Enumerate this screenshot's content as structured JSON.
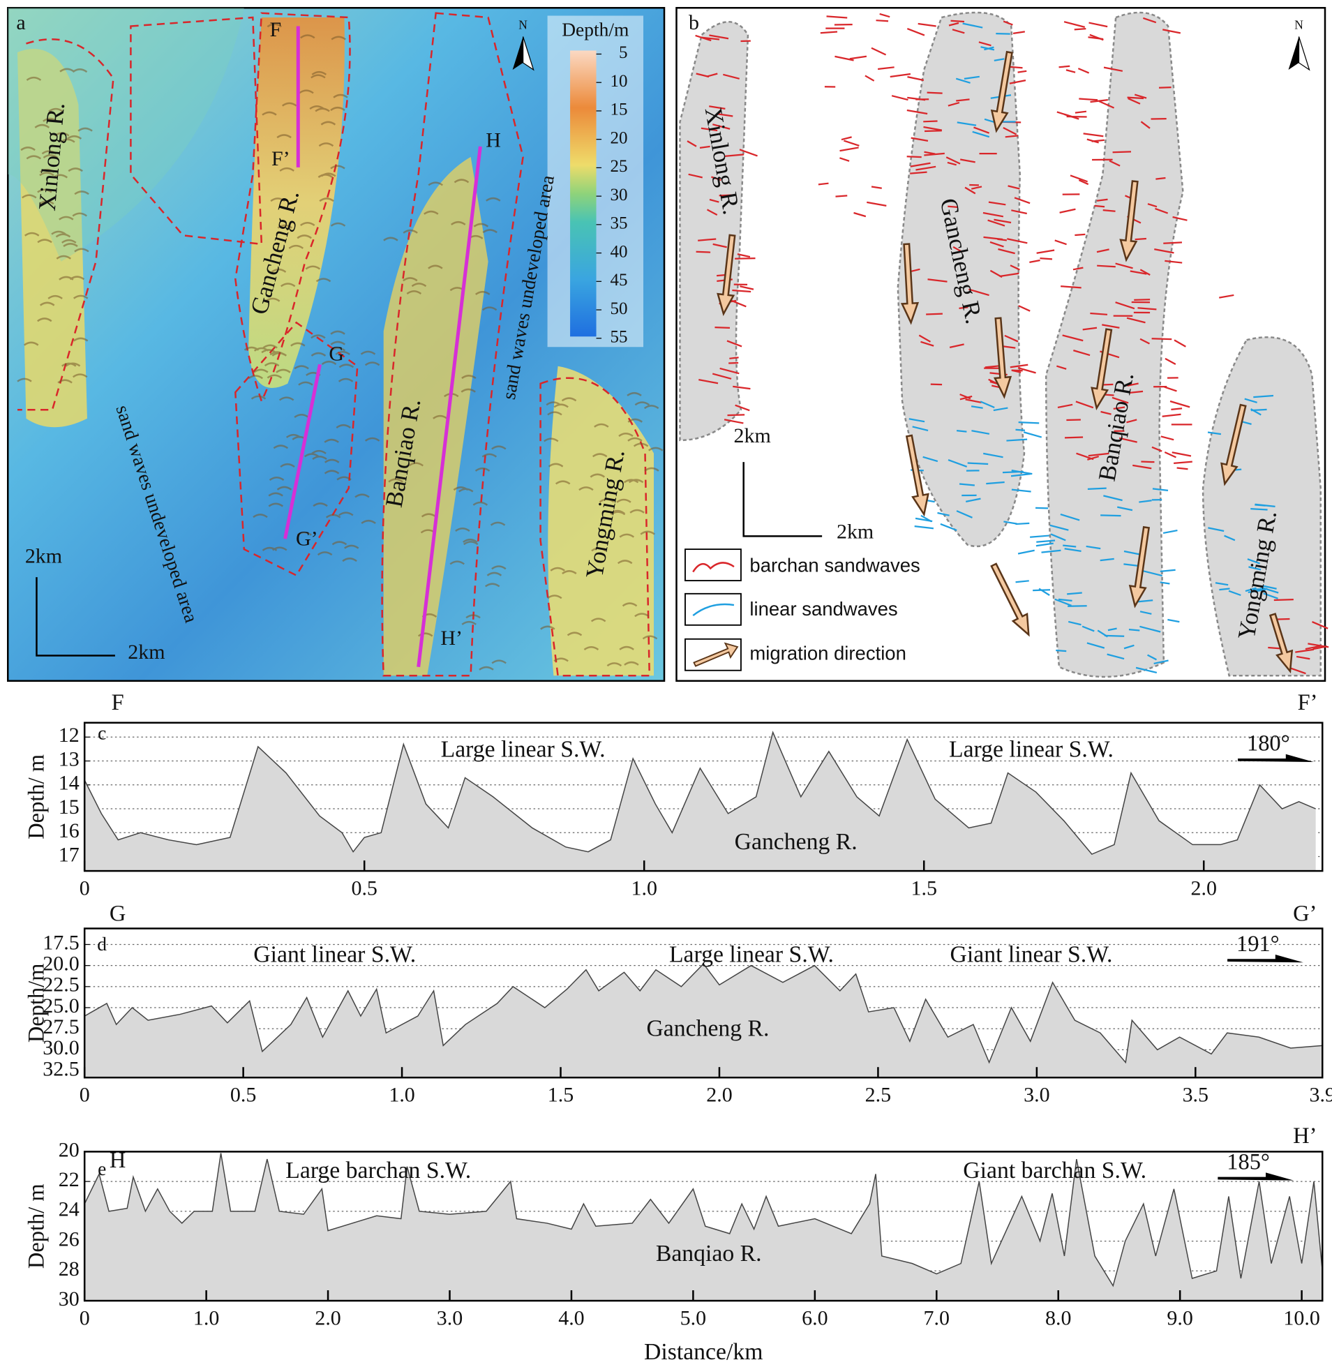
{
  "panel_a": {
    "label": "a",
    "ridges": [
      "Xinlong R.",
      "Gancheng R.",
      "Banqiao R.",
      "Yongming R."
    ],
    "undeveloped": [
      "sand waves undeveloped area",
      "sand waves undeveloped area"
    ],
    "profile_ends": [
      "F",
      "F’",
      "G",
      "G’",
      "H",
      "H’"
    ],
    "scale": [
      "2km",
      "2km"
    ],
    "north": "N",
    "colorbar": {
      "title": "Depth/m",
      "ticks": [
        5,
        10,
        15,
        20,
        25,
        30,
        35,
        40,
        45,
        50,
        55
      ]
    }
  },
  "panel_b": {
    "label": "b",
    "ridges": [
      "Xinlong R.",
      "Gancheng R.",
      "Banqiao R.",
      "Yongming R."
    ],
    "scale": [
      "2km",
      "2km"
    ],
    "north": "N",
    "legend": [
      "barchan sandwaves",
      "linear sandwaves",
      "migration direction"
    ]
  },
  "chart_data": [
    {
      "type": "area",
      "panel": "c",
      "start_label": "F",
      "end_label": "F’",
      "direction": "180°",
      "annotations": [
        "Large linear S.W.",
        "Large linear S.W.",
        "Gancheng R."
      ],
      "ylabel": "Depth/ m",
      "color": "#d9d9d9",
      "grid": true,
      "x": [
        0,
        0.03,
        0.06,
        0.1,
        0.15,
        0.2,
        0.26,
        0.31,
        0.36,
        0.42,
        0.46,
        0.48,
        0.5,
        0.53,
        0.57,
        0.61,
        0.65,
        0.68,
        0.73,
        0.8,
        0.86,
        0.9,
        0.94,
        0.98,
        1.02,
        1.05,
        1.1,
        1.15,
        1.2,
        1.23,
        1.28,
        1.33,
        1.38,
        1.42,
        1.47,
        1.52,
        1.58,
        1.62,
        1.65,
        1.7,
        1.75,
        1.8,
        1.84,
        1.87,
        1.92,
        1.98,
        2.03,
        2.06,
        2.1,
        2.14,
        2.17,
        2.2
      ],
      "values": [
        13.8,
        15.2,
        16.3,
        16.0,
        16.3,
        16.5,
        16.2,
        12.4,
        13.5,
        15.3,
        16.0,
        16.8,
        16.2,
        16.0,
        12.3,
        14.8,
        15.8,
        13.7,
        14.5,
        15.8,
        16.6,
        16.8,
        16.3,
        12.9,
        14.8,
        16.0,
        13.3,
        15.2,
        14.5,
        11.8,
        14.5,
        12.6,
        14.5,
        15.3,
        12.1,
        14.6,
        15.8,
        15.6,
        13.5,
        14.3,
        15.5,
        16.9,
        16.5,
        13.5,
        15.5,
        16.5,
        16.5,
        16.3,
        14.0,
        15.0,
        14.7,
        15.0
      ],
      "xlim": [
        0,
        2.212
      ],
      "xticks": [
        0,
        0.5,
        {
          "value": 1,
          "label": "1.0"
        },
        1.5,
        {
          "value": 2,
          "label": "2.0"
        }
      ],
      "ylim": [
        17.6,
        11.4
      ],
      "yticks": [
        12,
        13,
        14,
        15,
        16,
        17
      ]
    },
    {
      "type": "area",
      "panel": "d",
      "start_label": "G",
      "end_label": "G’",
      "direction": "191°",
      "annotations": [
        "Giant linear S.W.",
        "Large linear S.W.",
        "Giant linear S.W.",
        "Gancheng R."
      ],
      "ylabel": "Depth/m",
      "color": "#d9d9d9",
      "grid": true,
      "x": [
        0,
        0.07,
        0.1,
        0.15,
        0.2,
        0.3,
        0.4,
        0.45,
        0.52,
        0.56,
        0.65,
        0.7,
        0.75,
        0.83,
        0.87,
        0.92,
        0.95,
        1.05,
        1.1,
        1.13,
        1.2,
        1.3,
        1.35,
        1.45,
        1.52,
        1.58,
        1.62,
        1.7,
        1.75,
        1.8,
        1.88,
        1.95,
        2.0,
        2.1,
        2.2,
        2.3,
        2.38,
        2.43,
        2.47,
        2.55,
        2.6,
        2.65,
        2.72,
        2.8,
        2.85,
        2.92,
        2.98,
        3.05,
        3.12,
        3.2,
        3.28,
        3.3,
        3.38,
        3.45,
        3.55,
        3.6,
        3.7,
        3.8,
        3.9
      ],
      "values": [
        26,
        24.5,
        27,
        25,
        26.5,
        25.8,
        24.8,
        26.8,
        24.2,
        30.2,
        27,
        23.8,
        28.5,
        23,
        26,
        22.8,
        28,
        26,
        23,
        29.5,
        27,
        24.5,
        22.5,
        25,
        22.8,
        20.5,
        23,
        20.8,
        23,
        20.5,
        22.5,
        19.8,
        22.3,
        20,
        22,
        20,
        23,
        21,
        25.5,
        25,
        29,
        24,
        28.5,
        27,
        31.5,
        25,
        29,
        22,
        26.5,
        28,
        31.5,
        26.5,
        30,
        28.5,
        30.5,
        28,
        28.5,
        29.8,
        29.5
      ],
      "xlim": [
        0,
        3.9
      ],
      "xticks": [
        0,
        0.5,
        {
          "value": 1,
          "label": "1.0"
        },
        1.5,
        {
          "value": 2,
          "label": "2.0"
        },
        2.5,
        {
          "value": 3,
          "label": "3.0"
        },
        3.5,
        3.9
      ],
      "ylim": [
        33.3,
        15.6
      ],
      "yticks": [
        17.5,
        {
          "value": 20,
          "label": "20.0"
        },
        22.5,
        {
          "value": 25,
          "label": "25.0"
        },
        27.5,
        {
          "value": 30,
          "label": "30.0"
        },
        32.5
      ]
    },
    {
      "type": "area",
      "panel": "e",
      "start_label": "H",
      "end_label": "H’",
      "direction": "185°",
      "annotations": [
        "Large barchan S.W.",
        "Giant barchan S.W.",
        "Banqiao R."
      ],
      "ylabel": "Depth/ m",
      "xlabel": "Distance/km",
      "color": "#d9d9d9",
      "grid": true,
      "x": [
        0,
        0.12,
        0.2,
        0.35,
        0.4,
        0.5,
        0.6,
        0.7,
        0.8,
        0.9,
        1.05,
        1.12,
        1.2,
        1.4,
        1.5,
        1.6,
        1.8,
        1.95,
        2.0,
        2.2,
        2.4,
        2.6,
        2.65,
        2.75,
        3.0,
        3.3,
        3.5,
        3.55,
        3.8,
        4.0,
        4.1,
        4.2,
        4.5,
        4.65,
        4.8,
        5.0,
        5.1,
        5.3,
        5.4,
        5.5,
        5.6,
        5.7,
        6.0,
        6.3,
        6.45,
        6.5,
        6.55,
        6.8,
        7.0,
        7.2,
        7.35,
        7.45,
        7.7,
        7.85,
        7.95,
        8.05,
        8.15,
        8.3,
        8.45,
        8.55,
        8.7,
        8.8,
        8.95,
        9.1,
        9.3,
        9.4,
        9.5,
        9.65,
        9.75,
        9.9,
        10.0,
        10.1,
        10.17
      ],
      "values": [
        23.5,
        21.5,
        24,
        23.8,
        21.7,
        24,
        22.5,
        24,
        24.8,
        24,
        24,
        20.1,
        24,
        24,
        20.5,
        24,
        24.2,
        22.5,
        25.3,
        24.8,
        24.3,
        24.5,
        21,
        24,
        24.2,
        24,
        22,
        24.5,
        24.8,
        25.2,
        23.5,
        25,
        24.8,
        23.2,
        24.8,
        22.5,
        25,
        25.5,
        23.5,
        25.2,
        23,
        25,
        24.5,
        25.5,
        23.5,
        21.5,
        27,
        27.5,
        28.2,
        27.5,
        22,
        27.5,
        23,
        26,
        22.8,
        27,
        20.5,
        27,
        29,
        26,
        23.5,
        27,
        22.5,
        28.5,
        28,
        23,
        28.5,
        22,
        27.5,
        23,
        27.5,
        22,
        28
      ],
      "xlim": [
        0,
        10.17
      ],
      "xticks": [
        0,
        {
          "value": 1,
          "label": "1.0"
        },
        {
          "value": 2,
          "label": "2.0"
        },
        {
          "value": 3,
          "label": "3.0"
        },
        {
          "value": 4,
          "label": "4.0"
        },
        {
          "value": 5,
          "label": "5.0"
        },
        {
          "value": 6,
          "label": "6.0"
        },
        {
          "value": 7,
          "label": "7.0"
        },
        {
          "value": 8,
          "label": "8.0"
        },
        {
          "value": 9,
          "label": "9.0"
        },
        {
          "value": 10,
          "label": "10.0"
        }
      ],
      "ylim": [
        30,
        20
      ],
      "yticks": [
        20,
        22,
        24,
        26,
        28,
        30
      ]
    }
  ]
}
